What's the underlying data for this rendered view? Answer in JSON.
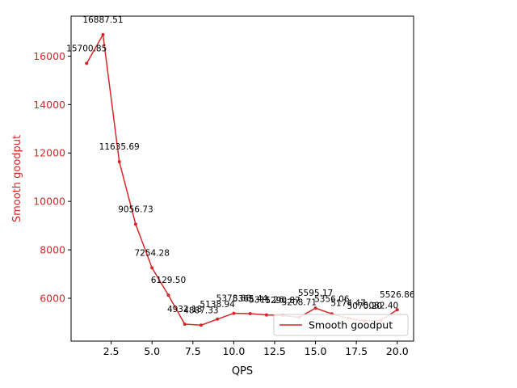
{
  "chart_data": {
    "type": "line",
    "title": "",
    "xlabel": "QPS",
    "ylabel": "Smooth goodput",
    "xlim": [
      0.05,
      21.0
    ],
    "ylim": [
      4230,
      17650
    ],
    "xticks": [
      2.5,
      5.0,
      7.5,
      10.0,
      12.5,
      15.0,
      17.5,
      20.0
    ],
    "xtick_labels": [
      "2.5",
      "5.0",
      "7.5",
      "10.0",
      "12.5",
      "15.0",
      "17.5",
      "20.0"
    ],
    "yticks": [
      6000,
      8000,
      10000,
      12000,
      14000,
      16000
    ],
    "ytick_labels": [
      "6000",
      "8000",
      "10000",
      "12000",
      "14000",
      "16000"
    ],
    "grid": false,
    "legend_position": "lower-right",
    "series": [
      {
        "name": "Smooth goodput",
        "color": "#d62728",
        "x": [
          1,
          2,
          3,
          4,
          5,
          6,
          7,
          8,
          9,
          10,
          11,
          12,
          13,
          14,
          15,
          16,
          17,
          18,
          19,
          20
        ],
        "y": [
          15700.85,
          16887.51,
          11635.69,
          9056.73,
          7254.28,
          6129.5,
          4932.18,
          4887.33,
          5138.94,
          5378.88,
          5365.44,
          5311.26,
          5290.87,
          5208.71,
          5595.17,
          5356.06,
          5174.47,
          5070.2,
          5082.4,
          5526.86
        ],
        "labels": [
          "15700.85",
          "16887.51",
          "11635.69",
          "9056.73",
          "7254.28",
          "6129.50",
          "4932.18",
          "4887.33",
          "5138.94",
          "5378.88",
          "5365.44",
          "5311.26",
          "5290.87",
          "5208.71",
          "5595.17",
          "5356.06",
          "5174.47",
          "5070.20",
          "5082.40",
          "5526.86"
        ]
      }
    ]
  }
}
